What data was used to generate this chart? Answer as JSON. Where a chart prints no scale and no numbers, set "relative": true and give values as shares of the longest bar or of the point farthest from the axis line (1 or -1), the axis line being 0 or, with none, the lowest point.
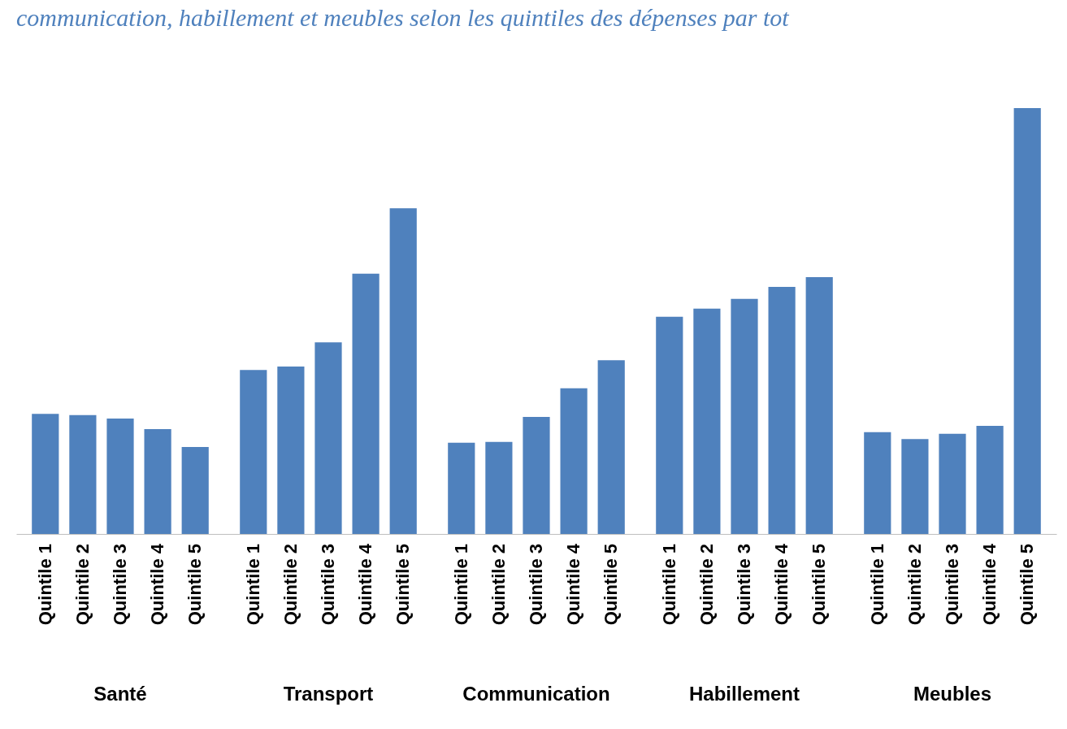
{
  "chart_data": {
    "type": "bar",
    "title": "communication, habillement et meubles selon les quintiles des dépenses par tot",
    "relative": true,
    "categories": [
      "Santé",
      "Transport",
      "Communication",
      "Habillement",
      "Meubles"
    ],
    "series": [
      {
        "name": "Quintile 1",
        "color": "#4f81bd",
        "values": [
          0.282,
          0.385,
          0.214,
          0.51,
          0.239
        ]
      },
      {
        "name": "Quintile 2",
        "color": "#4f81bd",
        "values": [
          0.279,
          0.393,
          0.216,
          0.529,
          0.223
        ]
      },
      {
        "name": "Quintile 3",
        "color": "#4f81bd",
        "values": [
          0.271,
          0.45,
          0.275,
          0.552,
          0.235
        ]
      },
      {
        "name": "Quintile 4",
        "color": "#4f81bd",
        "values": [
          0.246,
          0.611,
          0.342,
          0.58,
          0.254
        ]
      },
      {
        "name": "Quintile 5",
        "color": "#4f81bd",
        "values": [
          0.204,
          0.765,
          0.408,
          0.603,
          1
        ]
      }
    ]
  }
}
